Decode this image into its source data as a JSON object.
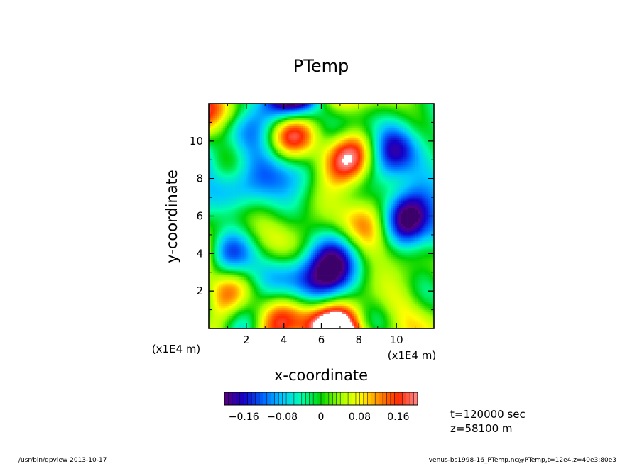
{
  "chart_data": {
    "type": "heatmap",
    "title": "PTemp",
    "xlabel": "x-coordinate",
    "ylabel": "y-coordinate",
    "xlim": [
      0,
      12
    ],
    "ylim": [
      0,
      12
    ],
    "x_ticks": [
      2,
      4,
      6,
      8,
      10
    ],
    "y_ticks": [
      2,
      4,
      6,
      8,
      10
    ],
    "x_tick_labels": [
      "2",
      "4",
      "6",
      "8",
      "10"
    ],
    "y_tick_labels": [
      "2",
      "4",
      "6",
      "8",
      "10"
    ],
    "x_unit": "(x1E4 m)",
    "y_unit": "(x1E4 m)",
    "colorbar": {
      "min": -0.2,
      "max": 0.2,
      "levels": 50,
      "tick_values": [
        -0.16,
        -0.08,
        0,
        0.08,
        0.16
      ],
      "tick_labels": [
        "−0.16",
        "−0.08",
        "0",
        "0.08",
        "0.16"
      ],
      "colors": [
        "#5a007a",
        "#1400c8",
        "#0064ff",
        "#00c8ff",
        "#00ffaa",
        "#00d200",
        "#a0ff00",
        "#ffff00",
        "#ff8c00",
        "#ff2800",
        "#ff8c8c"
      ]
    },
    "annotations": [
      "t=120000 sec",
      "z=58100 m"
    ]
  },
  "footer": {
    "left": "/usr/bin/gpview   2013-10-17",
    "right": "venus-bs1998-16_PTemp.nc@PTemp,t=12e4,z=40e3:80e3"
  }
}
